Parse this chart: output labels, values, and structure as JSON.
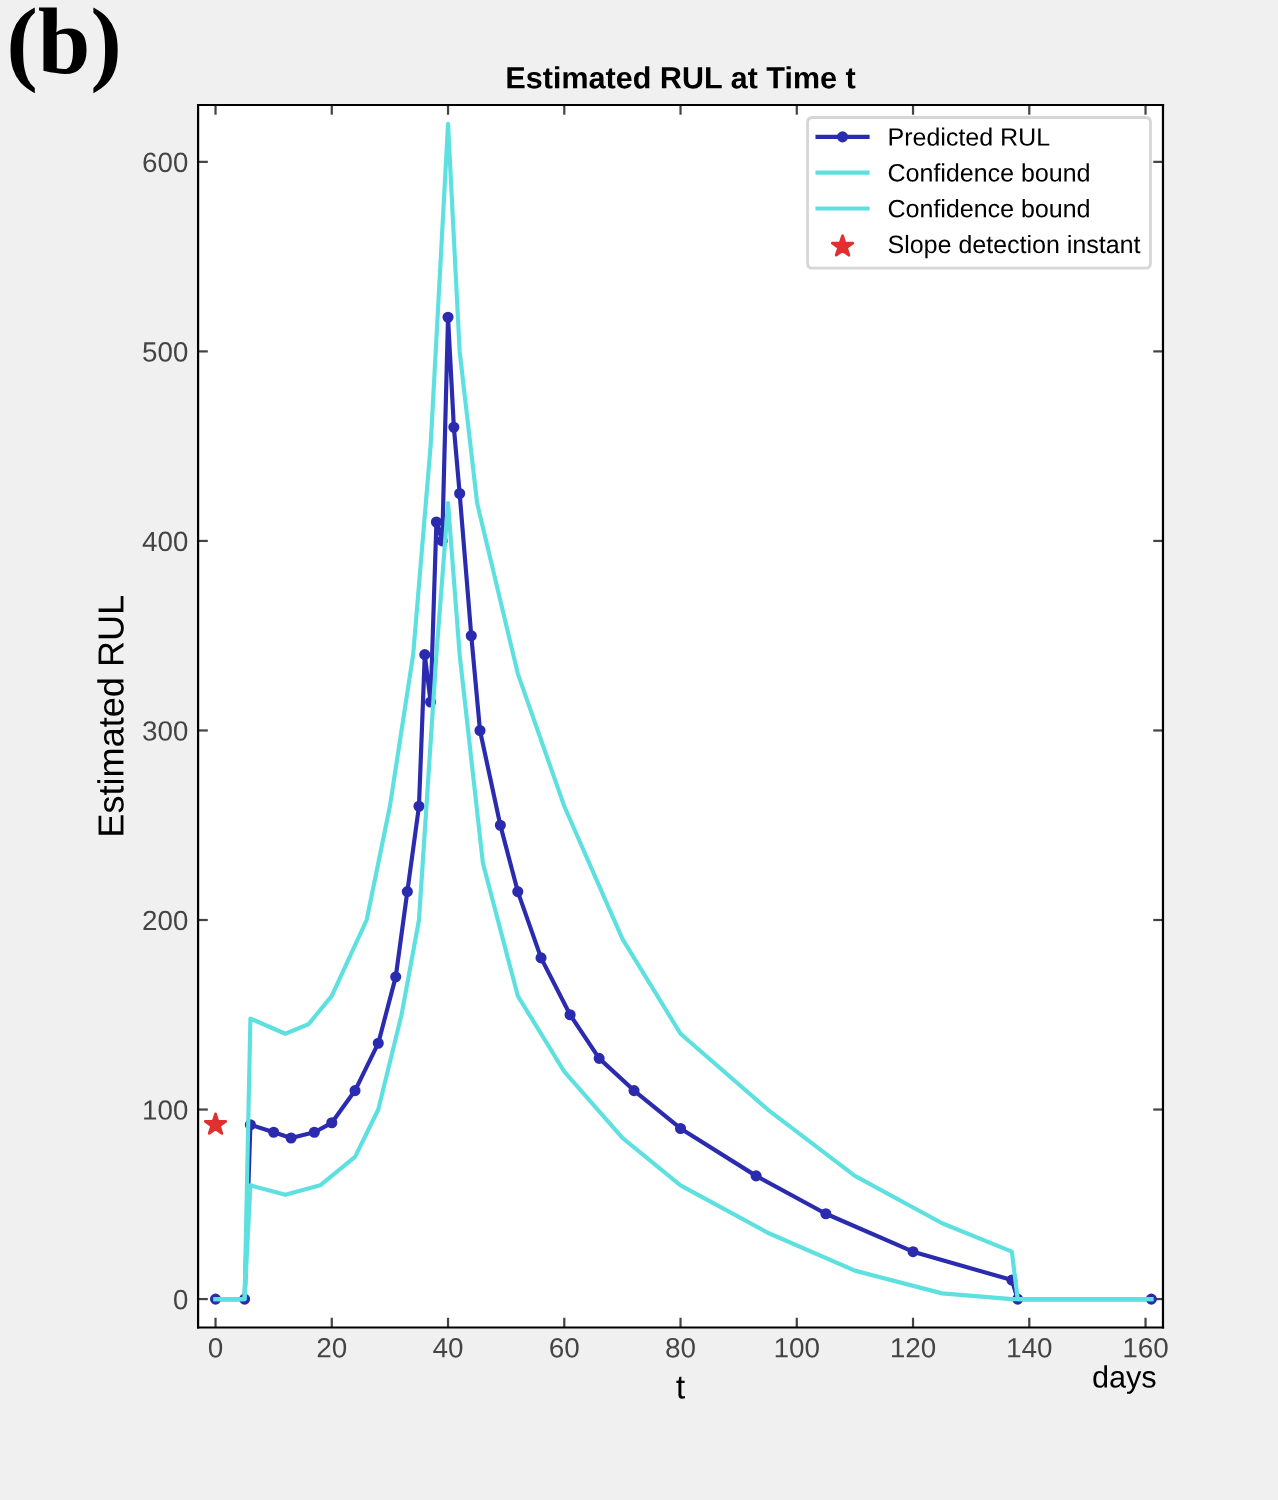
{
  "chart_data": {
    "type": "line",
    "title": "Estimated RUL at Time t",
    "xlabel": "t",
    "ylabel": "Estimated RUL",
    "annotations": [
      "(b)",
      "days"
    ],
    "xlim": [
      -3,
      163
    ],
    "ylim": [
      -15,
      630
    ],
    "xticks": [
      0,
      20,
      40,
      60,
      80,
      100,
      120,
      140,
      160
    ],
    "yticks": [
      0,
      100,
      200,
      300,
      400,
      500,
      600
    ],
    "grid": false,
    "legend": "top right",
    "series": [
      {
        "name": "Predicted RUL",
        "color": "#2b2bb0",
        "marker": "circle",
        "x": [
          0,
          5,
          6,
          10,
          13,
          17,
          20,
          24,
          28,
          31,
          33,
          35,
          36,
          37,
          38,
          39,
          40,
          41,
          42,
          44,
          45.5,
          49,
          52,
          56,
          61,
          66,
          72,
          80,
          93,
          105,
          120,
          137,
          138,
          161
        ],
        "values": [
          0,
          0,
          92,
          88,
          85,
          88,
          93,
          110,
          135,
          170,
          215,
          260,
          340,
          315,
          410,
          400,
          518,
          460,
          425,
          350,
          300,
          250,
          215,
          180,
          150,
          127,
          110,
          90,
          65,
          45,
          25,
          10,
          0,
          0
        ]
      },
      {
        "name": "Confidence bound",
        "color": "#5fe0e0",
        "marker": "none",
        "x": [
          0,
          5,
          6,
          12,
          16,
          20,
          26,
          30,
          34,
          37,
          40,
          42,
          45,
          52,
          60,
          70,
          80,
          95,
          110,
          125,
          137,
          138,
          161
        ],
        "values": [
          0,
          0,
          148,
          140,
          145,
          160,
          200,
          260,
          340,
          450,
          620,
          500,
          420,
          330,
          260,
          190,
          140,
          100,
          65,
          40,
          25,
          0,
          0
        ]
      },
      {
        "name": "Confidence bound",
        "color": "#5fe0e0",
        "marker": "none",
        "x": [
          0,
          5,
          6,
          12,
          18,
          24,
          28,
          32,
          35,
          38,
          40,
          42,
          46,
          52,
          60,
          70,
          80,
          95,
          110,
          125,
          137,
          161
        ],
        "values": [
          0,
          0,
          60,
          55,
          60,
          75,
          100,
          150,
          200,
          340,
          420,
          340,
          230,
          160,
          120,
          85,
          60,
          35,
          15,
          3,
          0,
          0
        ]
      },
      {
        "name": "Slope detection instant",
        "type": "scatter",
        "color": "#e03030",
        "marker": "star",
        "x": [
          0
        ],
        "values": [
          92
        ]
      }
    ]
  }
}
